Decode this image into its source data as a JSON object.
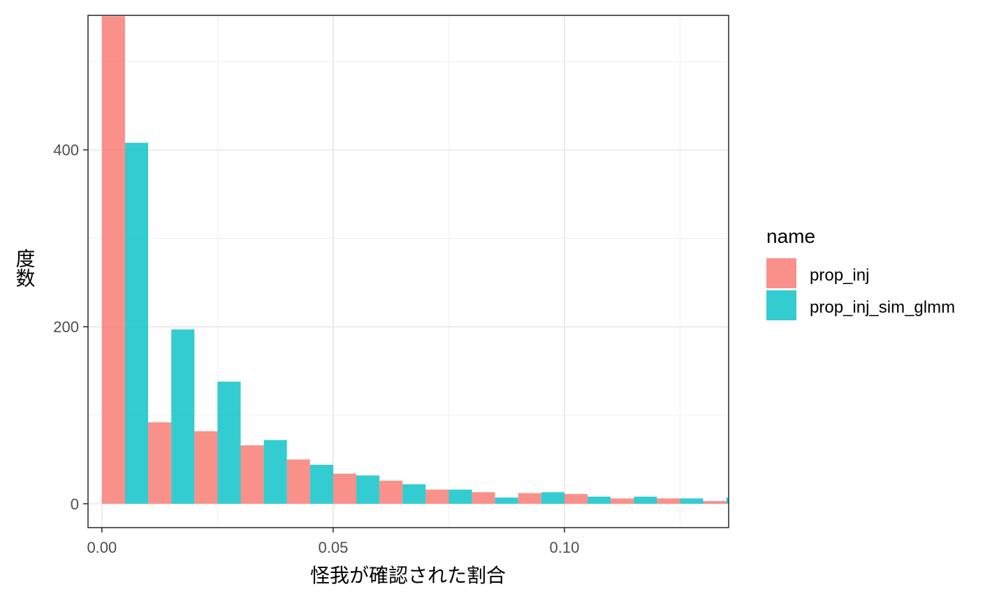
{
  "chart_data": {
    "type": "bar",
    "title": "",
    "xlabel": "怪我が確認された割合",
    "ylabel": "度数",
    "xlim": [
      -0.003,
      0.1355
    ],
    "ylim": [
      -27,
      552
    ],
    "x_ticks": [
      {
        "value": 0.0,
        "label": "0.00"
      },
      {
        "value": 0.05,
        "label": "0.05"
      },
      {
        "value": 0.1,
        "label": "0.10"
      }
    ],
    "x_minor_ticks": [
      0.025,
      0.075,
      0.125
    ],
    "y_ticks": [
      {
        "value": 0,
        "label": "0"
      },
      {
        "value": 200,
        "label": "200"
      },
      {
        "value": 400,
        "label": "400"
      }
    ],
    "y_minor_ticks": [
      100,
      300,
      500
    ],
    "bin_width": 0.01,
    "bin_starts": [
      0.0,
      0.01,
      0.02,
      0.03,
      0.04,
      0.05,
      0.06,
      0.07,
      0.08,
      0.09,
      0.1,
      0.11,
      0.12,
      0.13
    ],
    "series": [
      {
        "name": "prop_inj",
        "color": "#F8766D",
        "values": [
          551,
          92,
          82,
          66,
          50,
          34,
          26,
          16,
          13,
          12,
          11,
          6,
          6,
          3
        ]
      },
      {
        "name": "prop_inj_sim_glmm",
        "color": "#00BFC4",
        "values": [
          408,
          197,
          138,
          72,
          44,
          32,
          22,
          16,
          7,
          13,
          8,
          8,
          6,
          7
        ]
      }
    ],
    "grid": true,
    "legend": {
      "title": "name",
      "position": "right"
    }
  }
}
